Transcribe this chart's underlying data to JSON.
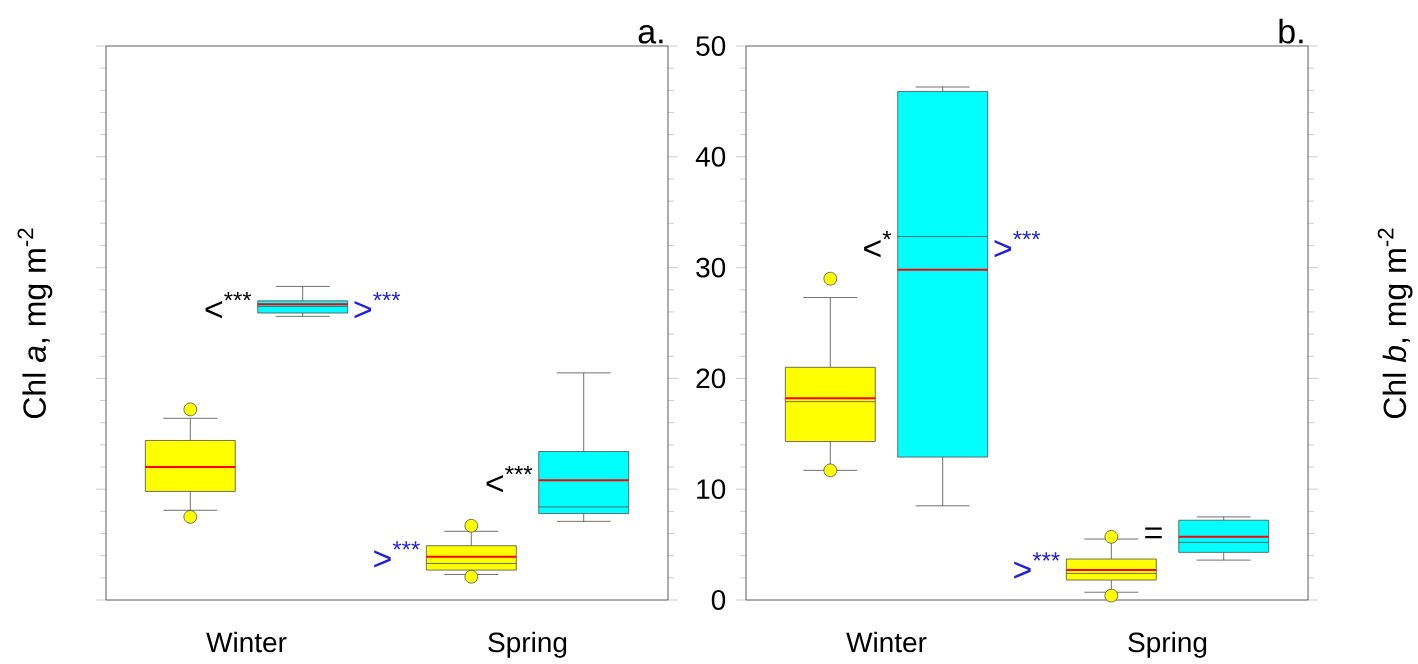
{
  "chart_data": [
    {
      "type": "box",
      "title": "a.",
      "ylabel": "Chl *a*, mg m$^{-2}$",
      "categories": [
        "Winter",
        "Spring"
      ],
      "ylim": [
        0,
        50
      ],
      "yticks": [
        0,
        10,
        20,
        30,
        40,
        50
      ],
      "tick_labels": "x",
      "series": [
        {
          "color": "#ffff00",
          "boxes": [
            {
              "low": 8.1,
              "q1": 9.8,
              "median": 12.0,
              "q3": 14.4,
              "high": 16.4,
              "mean": 12.0,
              "outliers": [
                7.5,
                17.2
              ]
            },
            {
              "low": 2.3,
              "q1": 2.7,
              "median": 3.3,
              "q3": 4.9,
              "high": 6.2,
              "mean": 3.9,
              "outliers": [
                2.1,
                6.7
              ]
            }
          ]
        },
        {
          "color": "#00ffff",
          "boxes": [
            {
              "low": 25.6,
              "q1": 25.9,
              "median": 26.5,
              "q3": 27.0,
              "high": 28.3,
              "mean": 26.7
            },
            {
              "low": 7.1,
              "q1": 7.8,
              "median": 8.4,
              "q3": 13.4,
              "high": 20.5,
              "mean": 10.8
            }
          ]
        }
      ],
      "annotations": [
        "<$^{***}$",
        ">$^{***}$",
        "<$^{***}$",
        ">$^{***}$"
      ]
    },
    {
      "type": "box",
      "title": "b.",
      "ylabel": "Chl *b*, mg m$^{-2}$",
      "categories": [
        "Winter",
        "Spring"
      ],
      "ylim": [
        0,
        50
      ],
      "yticks": [
        0,
        10,
        20,
        30,
        40,
        50
      ],
      "series": [
        {
          "color": "#ffff00",
          "boxes": [
            {
              "low": 11.7,
              "q1": 14.3,
              "median": 17.9,
              "q3": 21.0,
              "high": 27.3,
              "mean": 18.2,
              "outliers": [
                11.7,
                29.0
              ]
            },
            {
              "low": 0.7,
              "q1": 1.8,
              "median": 2.4,
              "q3": 3.7,
              "high": 5.5,
              "mean": 2.7,
              "outliers": [
                0.4,
                5.7
              ]
            }
          ]
        },
        {
          "color": "#00ffff",
          "boxes": [
            {
              "low": 8.5,
              "q1": 12.9,
              "median": 32.8,
              "q3": 45.9,
              "high": 46.3,
              "mean": 29.8
            },
            {
              "low": 3.6,
              "q1": 4.3,
              "median": 5.2,
              "q3": 7.2,
              "high": 7.5,
              "mean": 5.7
            }
          ]
        }
      ],
      "annotations": [
        "<$^{*}$",
        ">$^{***}$",
        "=",
        ">$^{***}$"
      ]
    }
  ]
}
